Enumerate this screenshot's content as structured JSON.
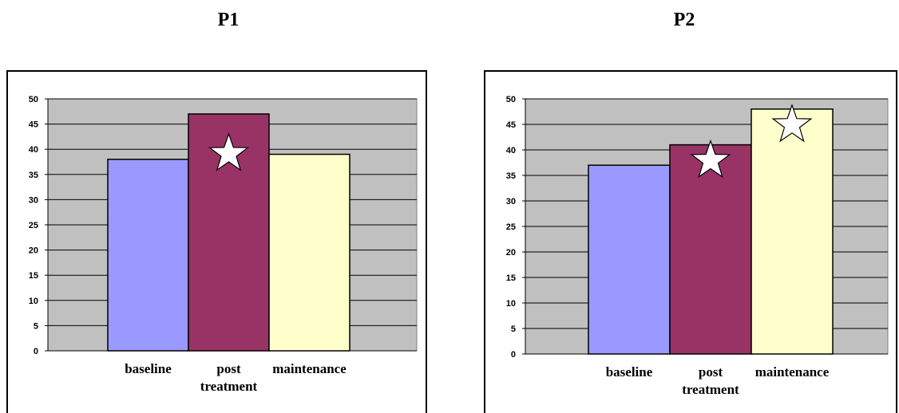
{
  "chart_data": [
    {
      "type": "bar",
      "title": "P1",
      "categories": [
        [
          "baseline"
        ],
        [
          "post",
          "treatment"
        ],
        [
          "maintenance"
        ]
      ],
      "values": [
        38,
        47,
        39
      ],
      "colors": [
        "#9999ff",
        "#993366",
        "#ffffcc"
      ],
      "starred": [
        false,
        true,
        false
      ],
      "yticks": [
        0,
        5,
        10,
        15,
        20,
        25,
        30,
        35,
        40,
        45,
        50
      ],
      "ylim": [
        0,
        50
      ],
      "plot_bg": "#c0c0c0",
      "grid": true
    },
    {
      "type": "bar",
      "title": "P2",
      "categories": [
        [
          "baseline"
        ],
        [
          "post",
          "treatment"
        ],
        [
          "maintenance"
        ]
      ],
      "values": [
        37,
        41,
        48
      ],
      "colors": [
        "#9999ff",
        "#993366",
        "#ffffcc"
      ],
      "starred": [
        false,
        true,
        true
      ],
      "yticks": [
        0,
        5,
        10,
        15,
        20,
        25,
        30,
        35,
        40,
        45,
        50
      ],
      "ylim": [
        0,
        50
      ],
      "plot_bg": "#c0c0c0",
      "grid": true
    }
  ]
}
